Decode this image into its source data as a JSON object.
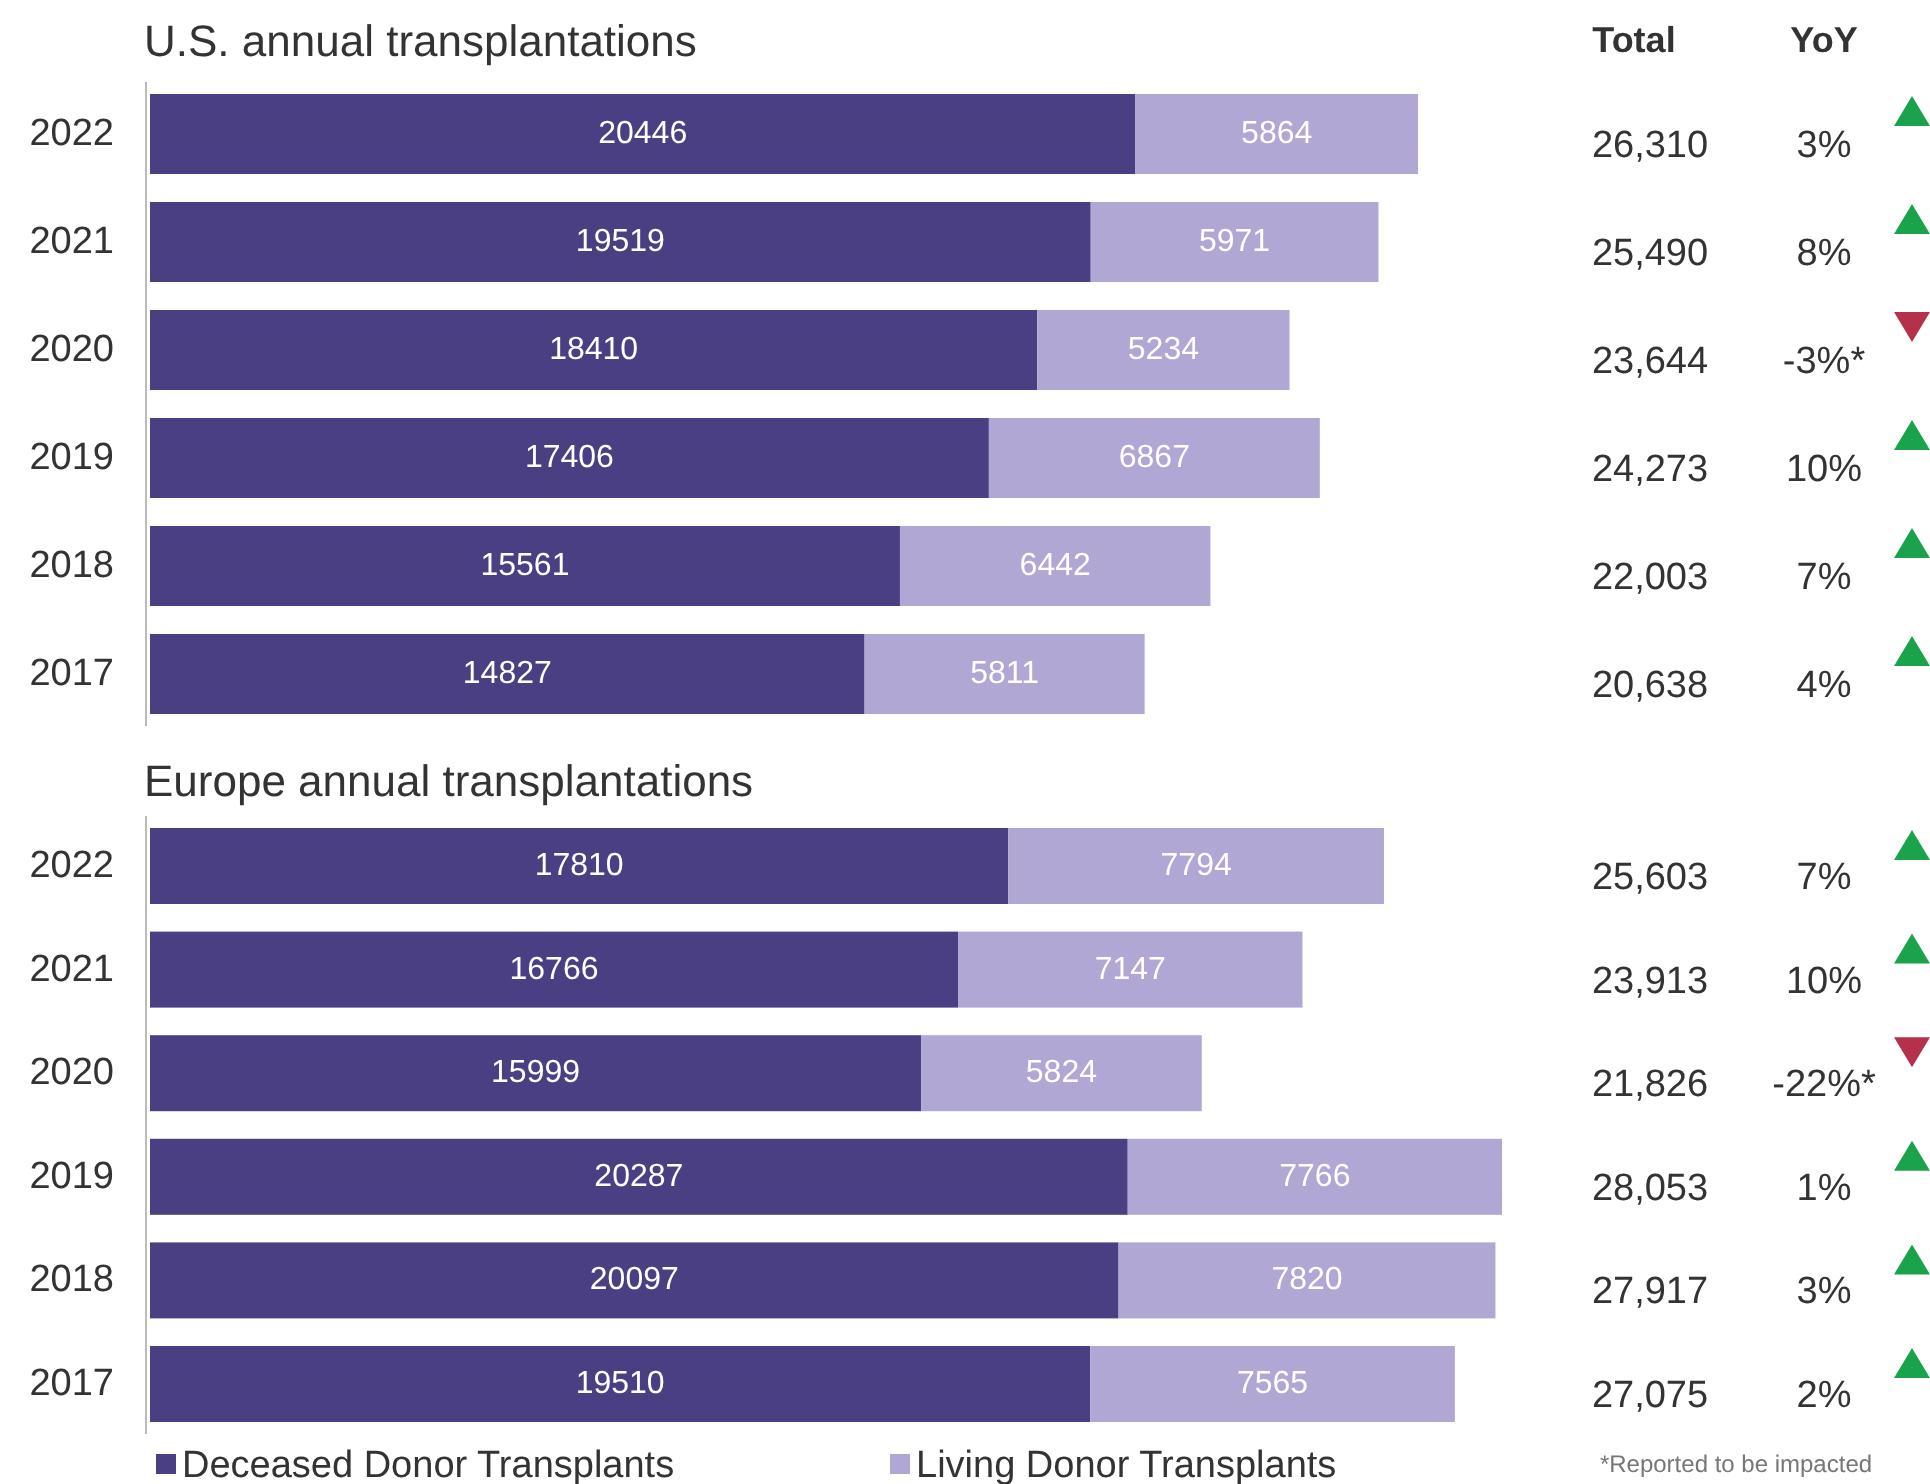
{
  "chart_data": [
    {
      "type": "bar",
      "title": "U.S. annual transplantations",
      "orientation": "horizontal",
      "stacked": true,
      "data_labels": true,
      "legend": false,
      "categories": [
        "2022",
        "2021",
        "2020",
        "2019",
        "2018",
        "2017"
      ],
      "series": [
        {
          "color": "#4b3f84",
          "values": [
            20446,
            19519,
            18410,
            17406,
            15561,
            14827
          ]
        },
        {
          "color": "#b1a7d5",
          "values": [
            5864,
            5971,
            5234,
            6867,
            6442,
            5811
          ]
        }
      ],
      "annotations": [
        "Total",
        "YoY",
        "26,310",
        "3%",
        "25,490",
        "8%",
        "23,644",
        "-3%*",
        "24,273",
        "10%",
        "22,003",
        "7%",
        "20,638",
        "4%"
      ]
    },
    {
      "type": "bar",
      "title": "Europe annual transplantations",
      "orientation": "horizontal",
      "stacked": true,
      "data_labels": true,
      "legend": "bottom",
      "categories": [
        "2022",
        "2021",
        "2020",
        "2019",
        "2018",
        "2017"
      ],
      "series": [
        {
          "name": "Deceased Donor Transplants",
          "color": "#4b3f84",
          "values": [
            17810,
            16766,
            15999,
            20287,
            20097,
            19510
          ]
        },
        {
          "name": "Living Donor Transplants",
          "color": "#b1a7d5",
          "values": [
            7794,
            7147,
            5824,
            7766,
            7820,
            7565
          ]
        }
      ],
      "annotations": [
        "25,603",
        "7%",
        "23,913",
        "10%",
        "21,826",
        "-22%*",
        "28,053",
        "1%",
        "27,917",
        "3%",
        "27,075",
        "2%",
        "*Reported to be impacted"
      ]
    }
  ]
}
